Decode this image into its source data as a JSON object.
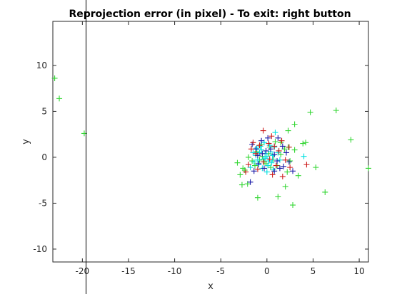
{
  "chart_data": {
    "type": "scatter",
    "title": "Reprojection error (in pixel) - To exit: right button",
    "xlabel": "x",
    "ylabel": "y",
    "xlim": [
      -23.2,
      11
    ],
    "ylim": [
      -11.4,
      14.8
    ],
    "xticks": [
      -20,
      -15,
      -10,
      -5,
      0,
      5,
      10
    ],
    "yticks": [
      -10,
      -5,
      0,
      5,
      10
    ],
    "grid": false,
    "marker": "plus",
    "cursor_line_x": -19.6,
    "series": [
      {
        "color": "#33d633",
        "points": [
          [
            -23,
            8.6
          ],
          [
            -22.5,
            6.4
          ],
          [
            -19.8,
            2.6
          ],
          [
            4.7,
            4.9
          ],
          [
            7.5,
            5.1
          ],
          [
            3,
            3.6
          ],
          [
            2.3,
            2.9
          ],
          [
            3.9,
            1.5
          ],
          [
            4.2,
            1.6
          ],
          [
            9.1,
            1.9
          ],
          [
            3,
            0.8
          ],
          [
            1.9,
            0.9
          ],
          [
            1.5,
            0.3
          ],
          [
            2.5,
            -0.4
          ],
          [
            5.3,
            -1.1
          ],
          [
            11,
            -1.2
          ],
          [
            6.3,
            -3.8
          ],
          [
            2,
            -3.2
          ],
          [
            1.2,
            -4.3
          ],
          [
            2.8,
            -5.2
          ],
          [
            -1,
            -4.4
          ],
          [
            -2.1,
            -2.9
          ],
          [
            -2.7,
            -3
          ],
          [
            -2.9,
            -1.9
          ],
          [
            -2.4,
            -1.4
          ],
          [
            -2.6,
            -1.2
          ],
          [
            -3.2,
            -0.6
          ],
          [
            -1.3,
            -0.9
          ],
          [
            0.4,
            -1.1
          ],
          [
            2.2,
            -1.6
          ],
          [
            3.4,
            -2
          ],
          [
            -0.8,
            -0.3
          ],
          [
            -0.5,
            0.1
          ],
          [
            0.2,
            0.4
          ],
          [
            -0.3,
            -0.5
          ],
          [
            0.7,
            -0.2
          ],
          [
            1.1,
            -0.9
          ],
          [
            -1.1,
            0.6
          ],
          [
            -0.1,
            -0.7
          ],
          [
            0.3,
            1.1
          ],
          [
            -0.6,
            1.4
          ],
          [
            0.9,
            1.7
          ],
          [
            1.5,
            1.6
          ],
          [
            2.3,
            1.1
          ],
          [
            -1.6,
            -0.4
          ],
          [
            -2,
            0
          ]
        ]
      },
      {
        "color": "#00e0e0",
        "points": [
          [
            -1.2,
            0.2
          ],
          [
            -1,
            -0.3
          ],
          [
            -0.8,
            0.5
          ],
          [
            -0.6,
            0.8
          ],
          [
            -0.4,
            -0.2
          ],
          [
            -0.2,
            0.4
          ],
          [
            0,
            0.1
          ],
          [
            0.2,
            -0.4
          ],
          [
            0.4,
            0.6
          ],
          [
            0.6,
            0.2
          ],
          [
            -0.9,
            -0.8
          ],
          [
            -0.5,
            -1.2
          ],
          [
            0.1,
            -0.9
          ],
          [
            0.5,
            -0.6
          ],
          [
            -1.4,
            -0.5
          ],
          [
            -1.5,
            0.5
          ],
          [
            -0.7,
            1.2
          ],
          [
            0.3,
            1.3
          ],
          [
            0.8,
            1.1
          ],
          [
            1.2,
            0.5
          ],
          [
            1.4,
            -0.3
          ],
          [
            -1.1,
            1
          ],
          [
            0,
            -1.6
          ],
          [
            0.7,
            -1.3
          ],
          [
            -0.3,
            1.6
          ],
          [
            4,
            0.1
          ],
          [
            0.9,
            2.7
          ],
          [
            -1.8,
            -1.1
          ],
          [
            0.6,
            -0.2
          ],
          [
            -0.2,
            -0.1
          ]
        ]
      },
      {
        "color": "#1a1aa8",
        "points": [
          [
            -1.6,
            1.4
          ],
          [
            -1.2,
            0.9
          ],
          [
            -0.6,
            1.8
          ],
          [
            0.1,
            2.1
          ],
          [
            1.2,
            2.1
          ],
          [
            1.7,
            1.2
          ],
          [
            2.1,
            0.5
          ],
          [
            -0.9,
            -0.7
          ],
          [
            -0.3,
            -1.2
          ],
          [
            0.8,
            -1.5
          ],
          [
            1.8,
            -1
          ],
          [
            -1.8,
            -2.7
          ],
          [
            -1.4,
            -1.5
          ],
          [
            1.4,
            -1.2
          ],
          [
            2.4,
            -0.5
          ],
          [
            2.8,
            -1.5
          ],
          [
            0.4,
            0.9
          ],
          [
            -0.5,
            0.4
          ],
          [
            -0.1,
            0.7
          ],
          [
            0.8,
            0.3
          ],
          [
            -1,
            0.2
          ],
          [
            1.1,
            -0.4
          ]
        ]
      },
      {
        "color": "#cc1a1a",
        "points": [
          [
            -0.4,
            2.9
          ],
          [
            0.5,
            2.3
          ],
          [
            1.6,
            1.8
          ],
          [
            -1.5,
            1.6
          ],
          [
            -0.8,
            1.3
          ],
          [
            0.2,
            1.5
          ],
          [
            2.4,
            1.1
          ],
          [
            -1.2,
            0.4
          ],
          [
            1.3,
            0.7
          ],
          [
            -2,
            -0.8
          ],
          [
            -2.3,
            -1.6
          ],
          [
            -1,
            -1.3
          ],
          [
            0.6,
            -1.9
          ],
          [
            1.7,
            -2.1
          ],
          [
            2.5,
            -1.1
          ],
          [
            4.3,
            -0.8
          ],
          [
            1,
            -0.9
          ],
          [
            -0.4,
            -0.5
          ],
          [
            0.3,
            -0.2
          ],
          [
            -1.7,
            0.9
          ],
          [
            0.8,
            1.2
          ],
          [
            2,
            -0.3
          ]
        ]
      }
    ]
  }
}
